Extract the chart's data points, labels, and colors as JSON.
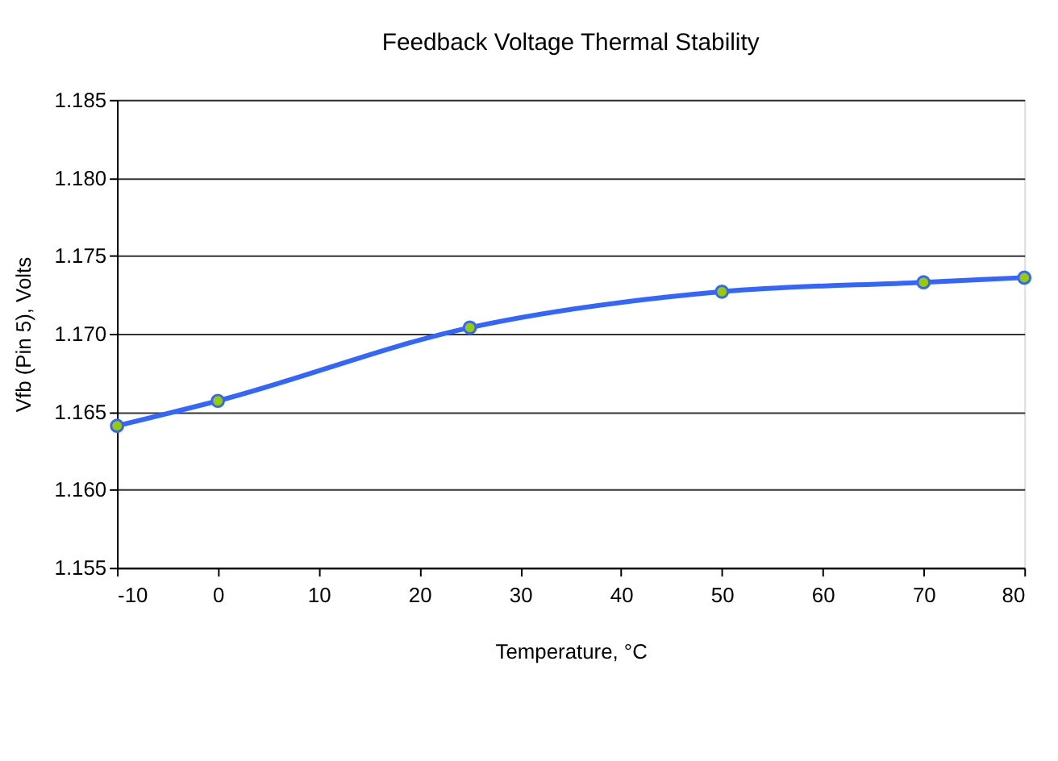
{
  "chart_data": {
    "type": "line",
    "title": "Feedback Voltage Thermal Stability",
    "xlabel": "Temperature, °C",
    "ylabel": "Vfb (Pin 5), Volts",
    "x": [
      -10,
      0,
      25,
      50,
      70,
      80
    ],
    "series": [
      {
        "color": "#3366ff",
        "values": [
          1.1641,
          1.1657,
          1.1704,
          1.1727,
          1.1733,
          1.1736
        ]
      }
    ],
    "xlim": [
      -10,
      80
    ],
    "xticks": [
      -10,
      0,
      10,
      20,
      30,
      40,
      50,
      60,
      70,
      80
    ],
    "ylim": [
      1.155,
      1.185
    ],
    "yticks": [
      1.155,
      {
        "value": 1.16,
        "label": "1.160"
      },
      1.165,
      {
        "value": 1.17,
        "label": "1.170"
      },
      1.175,
      {
        "value": 1.18,
        "label": "1.180"
      },
      1.185
    ],
    "grid": "y",
    "marker": "circle",
    "line_style": "solid"
  }
}
